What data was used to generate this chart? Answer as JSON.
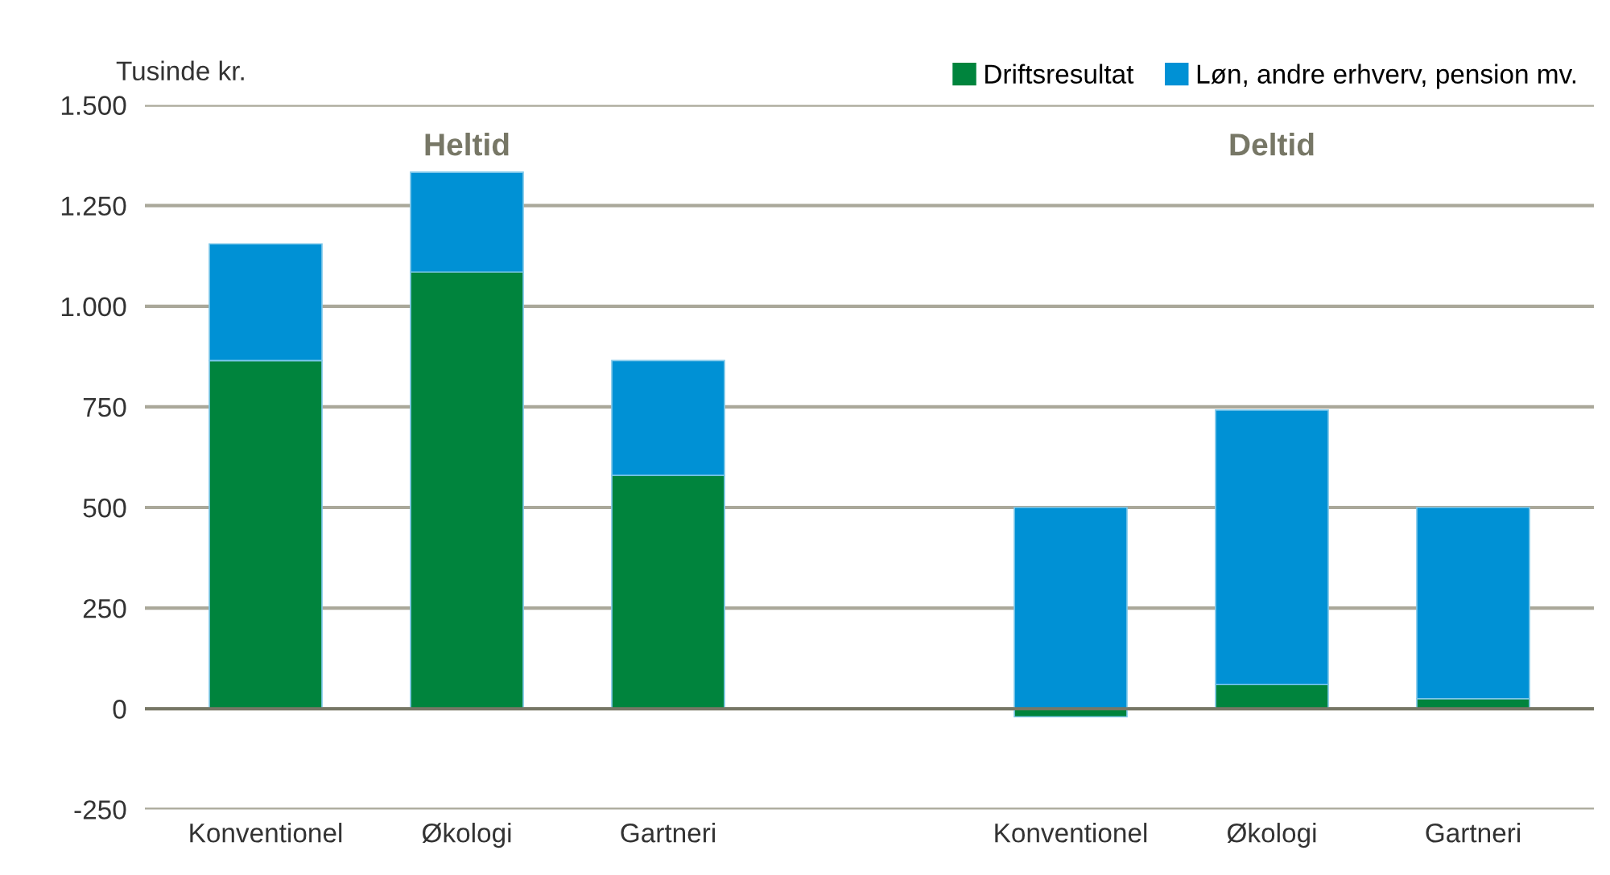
{
  "chart_data": {
    "type": "bar",
    "stacked": true,
    "ylabel": "Tusinde kr.",
    "categories": [
      "Konventionel",
      "Økologi",
      "Gartneri",
      null,
      "Konventionel",
      "Økologi",
      "Gartneri"
    ],
    "series": [
      {
        "name": "Driftsresultat",
        "color": "#00843d",
        "values": [
          865,
          1085,
          580,
          null,
          -20,
          60,
          25
        ]
      },
      {
        "name": "Løn, andre erhverv, pension mv.",
        "color": "#0091d5",
        "values": [
          290,
          248,
          285,
          null,
          500,
          682,
          475
        ]
      }
    ],
    "ylim": [
      -250,
      1500
    ],
    "yticks": [
      {
        "value": -250,
        "label": "-250"
      },
      0,
      250,
      500,
      750,
      {
        "value": 1000,
        "label": "1.000"
      },
      {
        "value": 1250,
        "label": "1.250"
      },
      {
        "value": 1500,
        "label": "1.500"
      }
    ],
    "grid": "y",
    "legend": "top right",
    "annotations": [
      "Heltid",
      "Deltid"
    ]
  }
}
